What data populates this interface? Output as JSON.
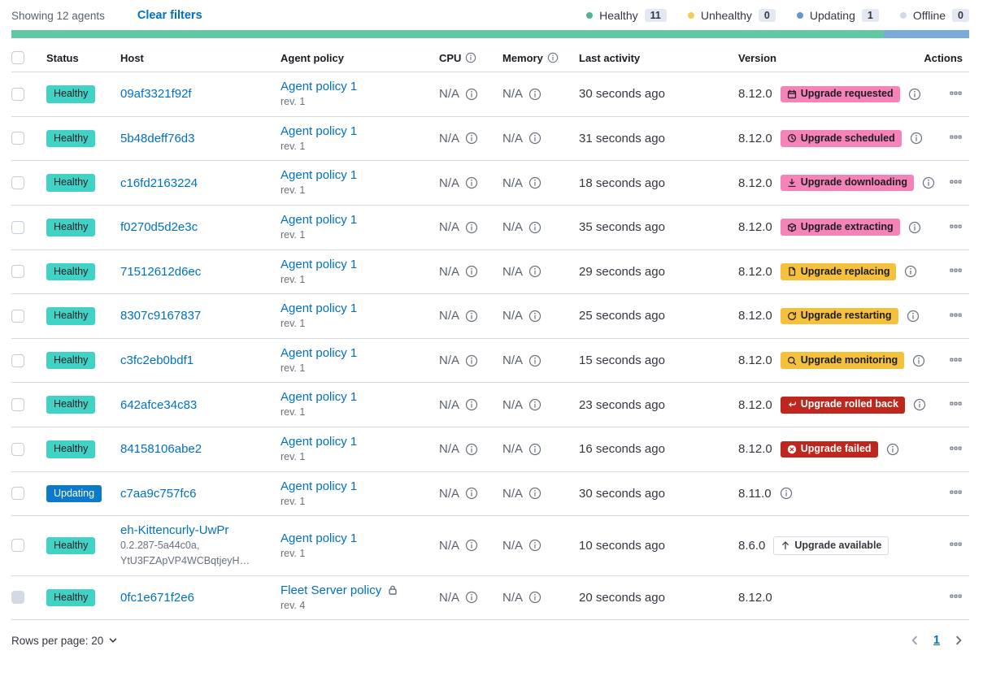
{
  "topbar": {
    "showing": "Showing 12 agents",
    "clear_filters": "Clear filters"
  },
  "legend": {
    "items": [
      {
        "label": "Healthy",
        "count": "11",
        "color": "#54b399"
      },
      {
        "label": "Unhealthy",
        "count": "0",
        "color": "#f0ce57"
      },
      {
        "label": "Updating",
        "count": "1",
        "color": "#6497ce"
      },
      {
        "label": "Offline",
        "count": "0",
        "color": "#d3dae6"
      }
    ]
  },
  "status_bar": {
    "segments": [
      {
        "label": "healthy",
        "color": "#62c9a3",
        "percent": 91.1
      },
      {
        "label": "updating",
        "color": "#79aad9",
        "percent": 8.9
      }
    ]
  },
  "table": {
    "headers": {
      "status": "Status",
      "host": "Host",
      "policy": "Agent policy",
      "cpu": "CPU",
      "memory": "Memory",
      "last_activity": "Last activity",
      "version": "Version",
      "actions": "Actions"
    },
    "rows": [
      {
        "checkbox_disabled": false,
        "status": {
          "label": "Healthy",
          "bg": "#40d2c4",
          "fg": "#1a1c21"
        },
        "host": {
          "name": "09af3321f92f",
          "sub": []
        },
        "policy": {
          "name": "Agent policy 1",
          "rev": "rev. 1",
          "locked": false
        },
        "cpu": "N/A",
        "memory": "N/A",
        "last_activity": "30 seconds ago",
        "version": "8.12.0",
        "upgrade": {
          "label": "Upgrade requested",
          "icon": "calendar",
          "bg": "#f583b7",
          "fg": "#1a1c21",
          "border": ""
        },
        "version_info": true
      },
      {
        "checkbox_disabled": false,
        "status": {
          "label": "Healthy",
          "bg": "#40d2c4",
          "fg": "#1a1c21"
        },
        "host": {
          "name": "5b48deff76d3",
          "sub": []
        },
        "policy": {
          "name": "Agent policy 1",
          "rev": "rev. 1",
          "locked": false
        },
        "cpu": "N/A",
        "memory": "N/A",
        "last_activity": "31 seconds ago",
        "version": "8.12.0",
        "upgrade": {
          "label": "Upgrade scheduled",
          "icon": "clock",
          "bg": "#f583b7",
          "fg": "#1a1c21",
          "border": ""
        },
        "version_info": true
      },
      {
        "checkbox_disabled": false,
        "status": {
          "label": "Healthy",
          "bg": "#40d2c4",
          "fg": "#1a1c21"
        },
        "host": {
          "name": "c16fd2163224",
          "sub": []
        },
        "policy": {
          "name": "Agent policy 1",
          "rev": "rev. 1",
          "locked": false
        },
        "cpu": "N/A",
        "memory": "N/A",
        "last_activity": "18 seconds ago",
        "version": "8.12.0",
        "upgrade": {
          "label": "Upgrade downloading",
          "icon": "download",
          "bg": "#f583b7",
          "fg": "#1a1c21",
          "border": ""
        },
        "version_info": true
      },
      {
        "checkbox_disabled": false,
        "status": {
          "label": "Healthy",
          "bg": "#40d2c4",
          "fg": "#1a1c21"
        },
        "host": {
          "name": "f0270d5d2e3c",
          "sub": []
        },
        "policy": {
          "name": "Agent policy 1",
          "rev": "rev. 1",
          "locked": false
        },
        "cpu": "N/A",
        "memory": "N/A",
        "last_activity": "35 seconds ago",
        "version": "8.12.0",
        "upgrade": {
          "label": "Upgrade extracting",
          "icon": "package",
          "bg": "#f583b7",
          "fg": "#1a1c21",
          "border": ""
        },
        "version_info": true
      },
      {
        "checkbox_disabled": false,
        "status": {
          "label": "Healthy",
          "bg": "#40d2c4",
          "fg": "#1a1c21"
        },
        "host": {
          "name": "71512612d6ec",
          "sub": []
        },
        "policy": {
          "name": "Agent policy 1",
          "rev": "rev. 1",
          "locked": false
        },
        "cpu": "N/A",
        "memory": "N/A",
        "last_activity": "29 seconds ago",
        "version": "8.12.0",
        "upgrade": {
          "label": "Upgrade replacing",
          "icon": "document",
          "bg": "#f5c13c",
          "fg": "#1a1c21",
          "border": ""
        },
        "version_info": true
      },
      {
        "checkbox_disabled": false,
        "status": {
          "label": "Healthy",
          "bg": "#40d2c4",
          "fg": "#1a1c21"
        },
        "host": {
          "name": "8307c9167837",
          "sub": []
        },
        "policy": {
          "name": "Agent policy 1",
          "rev": "rev. 1",
          "locked": false
        },
        "cpu": "N/A",
        "memory": "N/A",
        "last_activity": "25 seconds ago",
        "version": "8.12.0",
        "upgrade": {
          "label": "Upgrade restarting",
          "icon": "refresh",
          "bg": "#f5c13c",
          "fg": "#1a1c21",
          "border": ""
        },
        "version_info": true
      },
      {
        "checkbox_disabled": false,
        "status": {
          "label": "Healthy",
          "bg": "#40d2c4",
          "fg": "#1a1c21"
        },
        "host": {
          "name": "c3fc2eb0bdf1",
          "sub": []
        },
        "policy": {
          "name": "Agent policy 1",
          "rev": "rev. 1",
          "locked": false
        },
        "cpu": "N/A",
        "memory": "N/A",
        "last_activity": "15 seconds ago",
        "version": "8.12.0",
        "upgrade": {
          "label": "Upgrade monitoring",
          "icon": "inspect",
          "bg": "#f5c13c",
          "fg": "#1a1c21",
          "border": ""
        },
        "version_info": true
      },
      {
        "checkbox_disabled": false,
        "status": {
          "label": "Healthy",
          "bg": "#40d2c4",
          "fg": "#1a1c21"
        },
        "host": {
          "name": "642afce34c83",
          "sub": []
        },
        "policy": {
          "name": "Agent policy 1",
          "rev": "rev. 1",
          "locked": false
        },
        "cpu": "N/A",
        "memory": "N/A",
        "last_activity": "23 seconds ago",
        "version": "8.12.0",
        "upgrade": {
          "label": "Upgrade rolled back",
          "icon": "return",
          "bg": "#bd271e",
          "fg": "#ffffff",
          "border": ""
        },
        "version_info": true
      },
      {
        "checkbox_disabled": false,
        "status": {
          "label": "Healthy",
          "bg": "#40d2c4",
          "fg": "#1a1c21"
        },
        "host": {
          "name": "84158106abe2",
          "sub": []
        },
        "policy": {
          "name": "Agent policy 1",
          "rev": "rev. 1",
          "locked": false
        },
        "cpu": "N/A",
        "memory": "N/A",
        "last_activity": "16 seconds ago",
        "version": "8.12.0",
        "upgrade": {
          "label": "Upgrade failed",
          "icon": "crossCircle",
          "bg": "#bd271e",
          "fg": "#ffffff",
          "border": ""
        },
        "version_info": true
      },
      {
        "checkbox_disabled": false,
        "status": {
          "label": "Updating",
          "bg": "#0b79cc",
          "fg": "#ffffff"
        },
        "host": {
          "name": "c7aa9c757fc6",
          "sub": []
        },
        "policy": {
          "name": "Agent policy 1",
          "rev": "rev. 1",
          "locked": false
        },
        "cpu": "N/A",
        "memory": "N/A",
        "last_activity": "30 seconds ago",
        "version": "8.11.0",
        "upgrade": null,
        "version_info": true
      },
      {
        "checkbox_disabled": false,
        "status": {
          "label": "Healthy",
          "bg": "#40d2c4",
          "fg": "#1a1c21"
        },
        "host": {
          "name": "eh-Kittencurly-UwPr",
          "sub": [
            "0.2.287-5a44c0a,",
            "YtU3FZApVP4WCBqtjeyH…"
          ]
        },
        "policy": {
          "name": "Agent policy 1",
          "rev": "rev. 1",
          "locked": false
        },
        "cpu": "N/A",
        "memory": "N/A",
        "last_activity": "10 seconds ago",
        "version": "8.6.0",
        "upgrade": {
          "label": "Upgrade available",
          "icon": "arrowUp",
          "bg": "#ffffff",
          "fg": "#343741",
          "border": "#d3dae6"
        },
        "version_info": false
      },
      {
        "checkbox_disabled": true,
        "status": {
          "label": "Healthy",
          "bg": "#40d2c4",
          "fg": "#1a1c21"
        },
        "host": {
          "name": "0fc1e671f2e6",
          "sub": []
        },
        "policy": {
          "name": "Fleet Server policy",
          "rev": "rev. 4",
          "locked": true
        },
        "cpu": "N/A",
        "memory": "N/A",
        "last_activity": "20 seconds ago",
        "version": "8.12.0",
        "upgrade": null,
        "version_info": false
      }
    ]
  },
  "footer": {
    "rows_per_page": "Rows per page: 20",
    "page": "1"
  },
  "colors": {
    "link": "#0071c2",
    "row_border": "#d3dae6",
    "subtext": "#69707d"
  }
}
